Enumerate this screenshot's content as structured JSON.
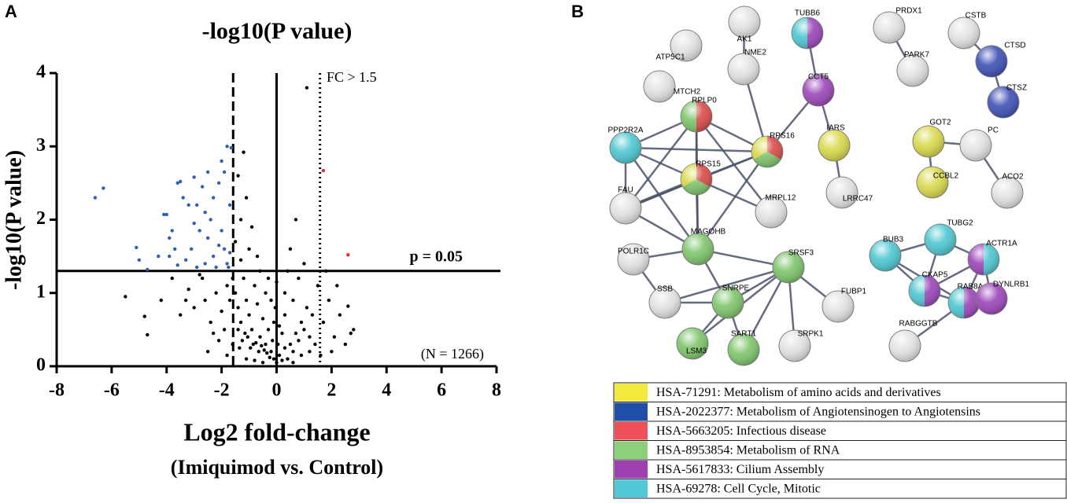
{
  "chart_data": {
    "type": "scatter",
    "panel": "A",
    "title": "-log10(P value)",
    "y_label": "-log10(P value)",
    "x_label": "Log2 fold-change",
    "x_sublabel": "(Imiquimod vs. Control)",
    "xlim": [
      -8,
      8
    ],
    "xticks": [
      -8,
      -6,
      -4,
      -2,
      0,
      2,
      4,
      6,
      8
    ],
    "ylim": [
      0,
      4
    ],
    "yticks": [
      0,
      1,
      2,
      3,
      4
    ],
    "vlines": [
      {
        "value": -1.58,
        "style": "dashed"
      },
      {
        "value": 0,
        "style": "solid"
      },
      {
        "value": 1.58,
        "style": "dotted"
      }
    ],
    "hlines": [
      {
        "value": 1.3,
        "style": "solid"
      }
    ],
    "annotations": [
      "FC > 1.5",
      "p = 0.05",
      "(N = 1266)"
    ],
    "series": [
      {
        "color": "#000000",
        "x": [
          -1.2,
          -1.4,
          -1.1,
          -1.3,
          -0.9,
          -1.5,
          -1.0,
          -0.7,
          -1.3,
          -1.6,
          -1.8,
          -2.2,
          -2.6,
          -3.0,
          -3.5,
          -4.2,
          -5.5,
          -4.8,
          -4.7,
          -3.8,
          -3.2,
          -2.8,
          -2.4,
          -2.0,
          -1.9,
          -1.7,
          -1.5,
          -1.4,
          -1.3,
          -1.2,
          -1.1,
          -1.0,
          -0.9,
          -0.8,
          -0.7,
          -0.6,
          -0.5,
          -0.4,
          -0.3,
          -0.2,
          -0.1,
          0,
          0.1,
          0.2,
          0.3,
          -0.15,
          -0.25,
          -0.35,
          -0.45,
          -0.55,
          -0.65,
          -0.75,
          -0.85,
          -0.95,
          -1.05,
          -1.15,
          -1.25,
          -1.35,
          -1.6,
          -2.1,
          -2.5,
          -1.8,
          -0.5,
          0.4,
          0.5,
          0.6,
          0.7,
          0.8,
          0.9,
          1.0,
          1.1,
          1.2,
          1.3,
          1.4,
          0.6,
          0.8,
          0.5,
          0.7,
          1.1,
          1.0,
          0.4,
          0.3,
          0.2,
          0.1,
          -0.05,
          1.5,
          1.7,
          1.9,
          2.1,
          2.3,
          2.5,
          2.7,
          2.8,
          2.6,
          2.2,
          1.8,
          2.0,
          1.6,
          1.2,
          0.9,
          0.3,
          0,
          -0.3,
          -0.6,
          -0.2,
          -1.4,
          -2.3,
          -1.1,
          -0.8,
          0.6,
          0.05,
          -0.1,
          -2.7,
          -3.3,
          -0.4
        ],
        "y": [
          2.92,
          2.6,
          2.3,
          2.0,
          1.9,
          1.7,
          1.6,
          1.5,
          1.45,
          1.2,
          1.1,
          1.0,
          0.9,
          0.8,
          0.7,
          0.9,
          0.95,
          0.68,
          0.43,
          1.2,
          1.05,
          1.25,
          0.6,
          0.75,
          0.5,
          0.9,
          1.0,
          0.8,
          0.6,
          1.2,
          0.9,
          0.7,
          0.5,
          1.1,
          0.85,
          0.4,
          0.65,
          0.3,
          0.5,
          0.2,
          0.1,
          0.05,
          0.15,
          0.08,
          0.25,
          0.35,
          0.12,
          0.18,
          0.22,
          0.28,
          0.2,
          0.32,
          0.3,
          0.25,
          0.4,
          0.45,
          0.35,
          0.25,
          0.3,
          0.35,
          0.2,
          0.15,
          0.05,
          0.1,
          0.3,
          0.2,
          0.45,
          0.35,
          0.6,
          0.5,
          0.8,
          0.4,
          0.7,
          0.3,
          0.9,
          1.2,
          1.6,
          2.0,
          3.8,
          1.4,
          1.3,
          0.7,
          0.45,
          0.55,
          0.8,
          1.1,
          0.6,
          0.9,
          0.4,
          0.7,
          0.3,
          0.45,
          0.5,
          0.82,
          1.1,
          1.3,
          0.2,
          0.15,
          0.2,
          0.15,
          1.0,
          1.15,
          1.2,
          1.3,
          0.9,
          0.5,
          0.45,
          0.1,
          0.08,
          0.05,
          0.3,
          0.6,
          1.2,
          0.9,
          1.0
        ]
      },
      {
        "color": "#3060b0",
        "x": [
          -6.6,
          -6.3,
          -5.1,
          -5.0,
          -4.7,
          -4.1,
          -4.0,
          -3.9,
          -3.9,
          -3.8,
          -3.7,
          -3.6,
          -3.5,
          -3.4,
          -3.3,
          -3.2,
          -3.1,
          -3.0,
          -3.0,
          -2.9,
          -2.8,
          -2.7,
          -2.6,
          -2.6,
          -2.5,
          -2.5,
          -2.4,
          -2.3,
          -2.3,
          -2.2,
          -2.1,
          -2.0,
          -2.0,
          -1.9,
          -1.9,
          -1.8,
          -1.8,
          -1.7,
          -1.7,
          -1.65,
          -4.3,
          -3.6,
          -2.9,
          -2.1,
          -1.75
        ],
        "y": [
          2.3,
          2.43,
          1.62,
          1.45,
          1.32,
          2.07,
          2.07,
          1.75,
          1.5,
          1.85,
          1.6,
          2.5,
          2.52,
          2.3,
          1.45,
          2.2,
          1.6,
          2.58,
          1.95,
          2.2,
          1.85,
          2.45,
          2.1,
          1.4,
          2.65,
          1.75,
          2.0,
          1.5,
          2.3,
          1.35,
          2.5,
          1.85,
          2.8,
          2.65,
          1.6,
          3.0,
          1.4,
          2.2,
          1.55,
          2.98,
          1.5,
          1.38,
          1.35,
          1.65,
          1.35
        ]
      },
      {
        "color": "#e03030",
        "x": [
          1.7,
          2.6
        ],
        "y": [
          2.67,
          1.52
        ]
      }
    ]
  },
  "network": {
    "panel": "B",
    "nodes": [
      {
        "label": "AK1",
        "colors": []
      },
      {
        "label": "ATP5C1",
        "colors": []
      },
      {
        "label": "TUBB6",
        "colors": [
          "#9b45b8",
          "#4cc6d0"
        ]
      },
      {
        "label": "MTCH2",
        "colors": []
      },
      {
        "label": "NME2",
        "colors": []
      },
      {
        "label": "CCT5",
        "colors": [
          "#9b45b8"
        ]
      },
      {
        "label": "RPLP0",
        "colors": [
          "#d94a4a",
          "#7dc46a"
        ]
      },
      {
        "label": "PPP2R2A",
        "colors": [
          "#4cc6d0"
        ]
      },
      {
        "label": "RPS16",
        "colors": [
          "#d94a4a",
          "#7dc46a",
          "#d8d84a"
        ]
      },
      {
        "label": "IARS",
        "colors": [
          "#d8d84a"
        ]
      },
      {
        "label": "RPS15",
        "colors": [
          "#d94a4a",
          "#7dc46a",
          "#d8d84a"
        ]
      },
      {
        "label": "FAU",
        "colors": []
      },
      {
        "label": "MRPL12",
        "colors": []
      },
      {
        "label": "LRRC47",
        "colors": []
      },
      {
        "label": "MAGOHB",
        "colors": [
          "#7dc46a"
        ]
      },
      {
        "label": "POLR1C",
        "colors": []
      },
      {
        "label": "SRSF3",
        "colors": [
          "#7dc46a"
        ]
      },
      {
        "label": "SSB",
        "colors": []
      },
      {
        "label": "FUBP1",
        "colors": []
      },
      {
        "label": "SNRPE",
        "colors": [
          "#7dc46a"
        ]
      },
      {
        "label": "LSM3",
        "colors": [
          "#7dc46a"
        ]
      },
      {
        "label": "SART1",
        "colors": [
          "#7dc46a"
        ]
      },
      {
        "label": "SRPK1",
        "colors": []
      },
      {
        "label": "PRDX1",
        "colors": []
      },
      {
        "label": "PARK7",
        "colors": []
      },
      {
        "label": "CSTB",
        "colors": []
      },
      {
        "label": "CTSD",
        "colors": [
          "#3d4fb5"
        ]
      },
      {
        "label": "CTSZ",
        "colors": [
          "#3d4fb5"
        ]
      },
      {
        "label": "GOT2",
        "colors": [
          "#d8d84a"
        ]
      },
      {
        "label": "PC",
        "colors": []
      },
      {
        "label": "CCBL2",
        "colors": [
          "#d8d84a"
        ]
      },
      {
        "label": "ACO2",
        "colors": []
      },
      {
        "label": "TUBG2",
        "colors": [
          "#4cc6d0"
        ]
      },
      {
        "label": "BUB3",
        "colors": [
          "#4cc6d0"
        ]
      },
      {
        "label": "ACTR1A",
        "colors": [
          "#4cc6d0",
          "#9b45b8"
        ]
      },
      {
        "label": "CKAP5",
        "colors": [
          "#9b45b8",
          "#4cc6d0"
        ]
      },
      {
        "label": "RAB8A",
        "colors": [
          "#9b45b8",
          "#4cc6d0"
        ]
      },
      {
        "label": "DYNLRB1",
        "colors": [
          "#9b45b8"
        ]
      },
      {
        "label": "RABGGTB",
        "colors": []
      }
    ],
    "legend": [
      {
        "color": "#f2ea3c",
        "label": "HSA-71291: Metabolism of amino acids and derivatives"
      },
      {
        "color": "#1f4fa8",
        "label": "HSA-2022377: Metabolism of Angiotensinogen to Angiotensins"
      },
      {
        "color": "#f0505a",
        "label": "HSA-5663205: Infectious disease"
      },
      {
        "color": "#8dcf7a",
        "label": "HSA-8953854: Metabolism of RNA"
      },
      {
        "color": "#a040b0",
        "label": "HSA-5617833: Cilium Assembly"
      },
      {
        "color": "#50c8d8",
        "label": "HSA-69278: Cell Cycle, Mitotic"
      }
    ]
  }
}
